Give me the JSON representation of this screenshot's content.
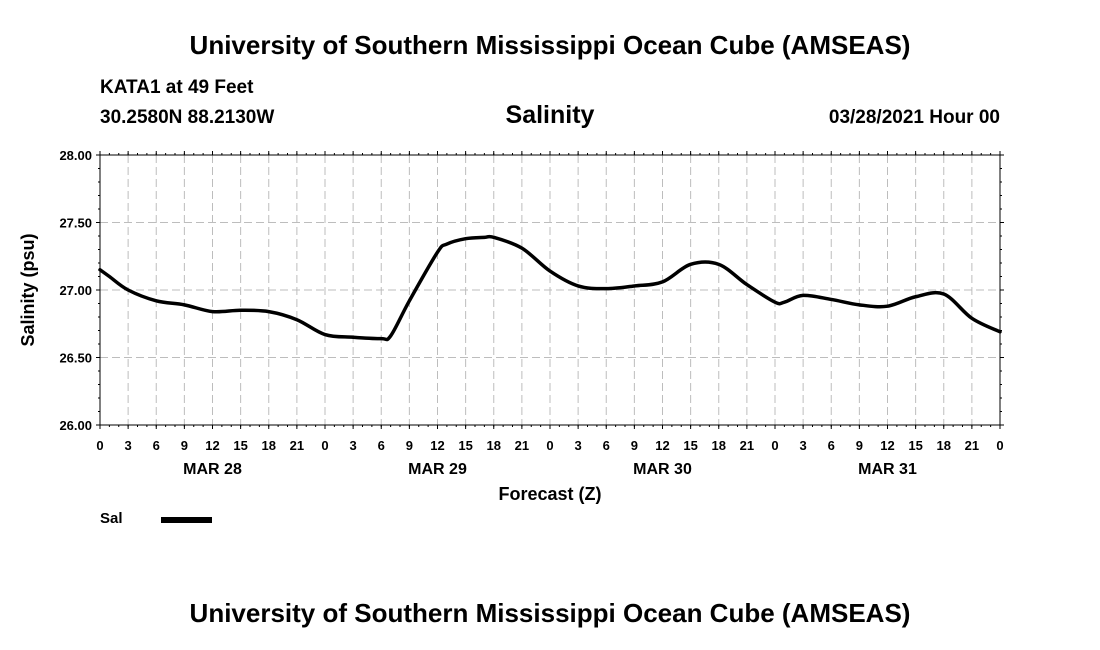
{
  "header": {
    "title": "University of Southern Mississippi Ocean Cube (AMSEAS)",
    "station": "KATA1 at 49 Feet",
    "coords": "30.2580N  88.2130W",
    "variable": "Salinity",
    "datetime": "03/28/2021 Hour 00"
  },
  "footer": {
    "title": "University of Southern Mississippi Ocean Cube (AMSEAS)"
  },
  "legend": {
    "label": "Sal",
    "color": "#000000"
  },
  "chart_data": {
    "type": "line",
    "title": "Salinity",
    "xlabel": "Forecast (Z)",
    "ylabel": "Salinity (psu)",
    "ylim": [
      26.0,
      28.0
    ],
    "xlim": [
      0,
      96
    ],
    "yticks": [
      "26.00",
      "26.50",
      "27.00",
      "27.50",
      "28.00"
    ],
    "xtick_labels": [
      "0",
      "3",
      "6",
      "9",
      "12",
      "15",
      "18",
      "21",
      "0",
      "3",
      "6",
      "9",
      "12",
      "15",
      "18",
      "21",
      "0",
      "3",
      "6",
      "9",
      "12",
      "15",
      "18",
      "21",
      "0",
      "3",
      "6",
      "9",
      "12",
      "15",
      "18",
      "21",
      "0"
    ],
    "date_labels": [
      {
        "label": "MAR 28",
        "hour": 12
      },
      {
        "label": "MAR 29",
        "hour": 36
      },
      {
        "label": "MAR 30",
        "hour": 60
      },
      {
        "label": "MAR 31",
        "hour": 84
      }
    ],
    "grid": true,
    "series": [
      {
        "name": "Sal",
        "color": "#000000",
        "x": [
          0,
          1,
          3,
          6,
          9,
          12,
          15,
          18,
          21,
          24,
          27,
          30,
          31,
          33,
          36,
          37,
          39,
          41,
          42,
          45,
          48,
          51,
          54,
          57,
          60,
          63,
          66,
          69,
          72,
          73,
          75,
          78,
          81,
          84,
          87,
          90,
          93,
          96
        ],
        "y": [
          27.15,
          27.1,
          27.0,
          26.92,
          26.89,
          26.84,
          26.85,
          26.84,
          26.78,
          26.67,
          26.65,
          26.64,
          26.66,
          26.92,
          27.28,
          27.34,
          27.38,
          27.39,
          27.39,
          27.31,
          27.14,
          27.03,
          27.01,
          27.03,
          27.06,
          27.19,
          27.19,
          27.04,
          26.91,
          26.91,
          26.96,
          26.93,
          26.89,
          26.88,
          26.95,
          26.97,
          26.79,
          26.69
        ]
      }
    ]
  }
}
